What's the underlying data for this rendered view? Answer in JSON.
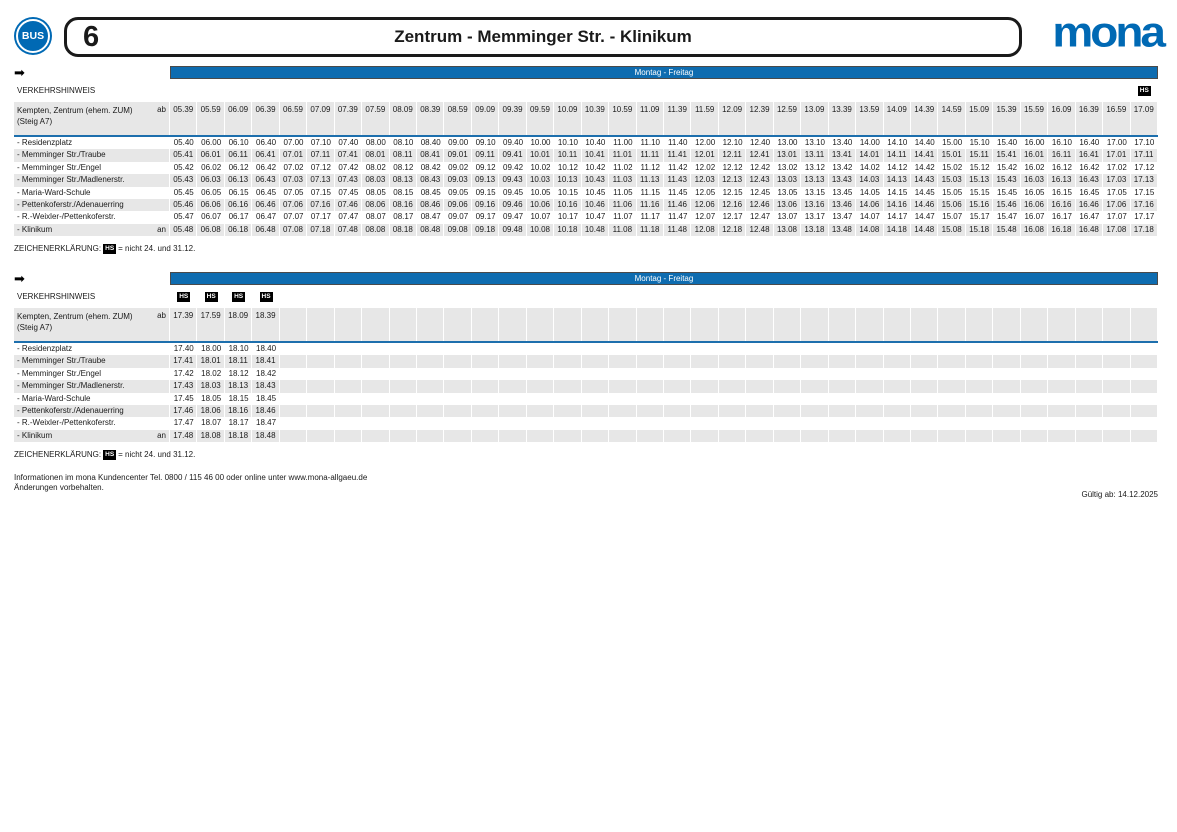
{
  "header": {
    "bus_label": "BUS",
    "line_number": "6",
    "title": "Zentrum - Memminger Str. - Klinikum",
    "logo_text": "mona"
  },
  "colors": {
    "brand_blue": "#0069b4",
    "bar_blue": "#0e6cb0",
    "row_gray": "#e7e7e7",
    "badge_black": "#000000"
  },
  "legend": {
    "prefix": "ZEICHENERKLÄRUNG:",
    "symbol": "HS",
    "suffix": "= nicht 24. und 31.12."
  },
  "footer": {
    "info_line1": "Informationen im mona Kundencenter Tel. 0800 / 115 46 00 oder online unter www.mona-allgaeu.de",
    "info_line2": "Änderungen vorbehalten.",
    "valid_from": "Gültig ab: 14.12.2025"
  },
  "tables": [
    {
      "day_label": "Montag - Freitag",
      "hinweis_label": "VERKEHRSHINWEIS",
      "hs_symbol": "HS",
      "num_columns": 36,
      "hs_columns": [
        35
      ],
      "origin": {
        "name": "Kempten, Zentrum (ehem. ZUM)",
        "name2": "(Steig A7)",
        "tag": "ab",
        "times": [
          "05.39",
          "05.59",
          "06.09",
          "06.39",
          "06.59",
          "07.09",
          "07.39",
          "07.59",
          "08.09",
          "08.39",
          "08.59",
          "09.09",
          "09.39",
          "09.59",
          "10.09",
          "10.39",
          "10.59",
          "11.09",
          "11.39",
          "11.59",
          "12.09",
          "12.39",
          "12.59",
          "13.09",
          "13.39",
          "13.59",
          "14.09",
          "14.39",
          "14.59",
          "15.09",
          "15.39",
          "15.59",
          "16.09",
          "16.39",
          "16.59",
          "17.09"
        ]
      },
      "rows": [
        {
          "name": "- Residenzplatz",
          "tag": "",
          "times": [
            "05.40",
            "06.00",
            "06.10",
            "06.40",
            "07.00",
            "07.10",
            "07.40",
            "08.00",
            "08.10",
            "08.40",
            "09.00",
            "09.10",
            "09.40",
            "10.00",
            "10.10",
            "10.40",
            "11.00",
            "11.10",
            "11.40",
            "12.00",
            "12.10",
            "12.40",
            "13.00",
            "13.10",
            "13.40",
            "14.00",
            "14.10",
            "14.40",
            "15.00",
            "15.10",
            "15.40",
            "16.00",
            "16.10",
            "16.40",
            "17.00",
            "17.10"
          ]
        },
        {
          "name": "- Memminger Str./Traube",
          "tag": "",
          "times": [
            "05.41",
            "06.01",
            "06.11",
            "06.41",
            "07.01",
            "07.11",
            "07.41",
            "08.01",
            "08.11",
            "08.41",
            "09.01",
            "09.11",
            "09.41",
            "10.01",
            "10.11",
            "10.41",
            "11.01",
            "11.11",
            "11.41",
            "12.01",
            "12.11",
            "12.41",
            "13.01",
            "13.11",
            "13.41",
            "14.01",
            "14.11",
            "14.41",
            "15.01",
            "15.11",
            "15.41",
            "16.01",
            "16.11",
            "16.41",
            "17.01",
            "17.11"
          ]
        },
        {
          "name": "- Memminger Str./Engel",
          "tag": "",
          "times": [
            "05.42",
            "06.02",
            "06.12",
            "06.42",
            "07.02",
            "07.12",
            "07.42",
            "08.02",
            "08.12",
            "08.42",
            "09.02",
            "09.12",
            "09.42",
            "10.02",
            "10.12",
            "10.42",
            "11.02",
            "11.12",
            "11.42",
            "12.02",
            "12.12",
            "12.42",
            "13.02",
            "13.12",
            "13.42",
            "14.02",
            "14.12",
            "14.42",
            "15.02",
            "15.12",
            "15.42",
            "16.02",
            "16.12",
            "16.42",
            "17.02",
            "17.12"
          ]
        },
        {
          "name": "- Memminger Str./Madlenerstr.",
          "tag": "",
          "times": [
            "05.43",
            "06.03",
            "06.13",
            "06.43",
            "07.03",
            "07.13",
            "07.43",
            "08.03",
            "08.13",
            "08.43",
            "09.03",
            "09.13",
            "09.43",
            "10.03",
            "10.13",
            "10.43",
            "11.03",
            "11.13",
            "11.43",
            "12.03",
            "12.13",
            "12.43",
            "13.03",
            "13.13",
            "13.43",
            "14.03",
            "14.13",
            "14.43",
            "15.03",
            "15.13",
            "15.43",
            "16.03",
            "16.13",
            "16.43",
            "17.03",
            "17.13"
          ]
        },
        {
          "name": "- Maria-Ward-Schule",
          "tag": "",
          "times": [
            "05.45",
            "06.05",
            "06.15",
            "06.45",
            "07.05",
            "07.15",
            "07.45",
            "08.05",
            "08.15",
            "08.45",
            "09.05",
            "09.15",
            "09.45",
            "10.05",
            "10.15",
            "10.45",
            "11.05",
            "11.15",
            "11.45",
            "12.05",
            "12.15",
            "12.45",
            "13.05",
            "13.15",
            "13.45",
            "14.05",
            "14.15",
            "14.45",
            "15.05",
            "15.15",
            "15.45",
            "16.05",
            "16.15",
            "16.45",
            "17.05",
            "17.15"
          ]
        },
        {
          "name": "- Pettenkoferstr./Adenauerring",
          "tag": "",
          "times": [
            "05.46",
            "06.06",
            "06.16",
            "06.46",
            "07.06",
            "07.16",
            "07.46",
            "08.06",
            "08.16",
            "08.46",
            "09.06",
            "09.16",
            "09.46",
            "10.06",
            "10.16",
            "10.46",
            "11.06",
            "11.16",
            "11.46",
            "12.06",
            "12.16",
            "12.46",
            "13.06",
            "13.16",
            "13.46",
            "14.06",
            "14.16",
            "14.46",
            "15.06",
            "15.16",
            "15.46",
            "16.06",
            "16.16",
            "16.46",
            "17.06",
            "17.16"
          ]
        },
        {
          "name": "- R.-Weixler-/Pettenkoferstr.",
          "tag": "",
          "times": [
            "05.47",
            "06.07",
            "06.17",
            "06.47",
            "07.07",
            "07.17",
            "07.47",
            "08.07",
            "08.17",
            "08.47",
            "09.07",
            "09.17",
            "09.47",
            "10.07",
            "10.17",
            "10.47",
            "11.07",
            "11.17",
            "11.47",
            "12.07",
            "12.17",
            "12.47",
            "13.07",
            "13.17",
            "13.47",
            "14.07",
            "14.17",
            "14.47",
            "15.07",
            "15.17",
            "15.47",
            "16.07",
            "16.17",
            "16.47",
            "17.07",
            "17.17"
          ]
        },
        {
          "name": "- Klinikum",
          "tag": "an",
          "times": [
            "05.48",
            "06.08",
            "06.18",
            "06.48",
            "07.08",
            "07.18",
            "07.48",
            "08.08",
            "08.18",
            "08.48",
            "09.08",
            "09.18",
            "09.48",
            "10.08",
            "10.18",
            "10.48",
            "11.08",
            "11.18",
            "11.48",
            "12.08",
            "12.18",
            "12.48",
            "13.08",
            "13.18",
            "13.48",
            "14.08",
            "14.18",
            "14.48",
            "15.08",
            "15.18",
            "15.48",
            "16.08",
            "16.18",
            "16.48",
            "17.08",
            "17.18"
          ]
        }
      ]
    },
    {
      "day_label": "Montag - Freitag",
      "hinweis_label": "VERKEHRSHINWEIS",
      "hs_symbol": "HS",
      "num_columns": 36,
      "hs_columns": [
        0,
        1,
        2,
        3
      ],
      "origin": {
        "name": "Kempten, Zentrum (ehem. ZUM)",
        "name2": "(Steig A7)",
        "tag": "ab",
        "times": [
          "17.39",
          "17.59",
          "18.09",
          "18.39"
        ]
      },
      "rows": [
        {
          "name": "- Residenzplatz",
          "tag": "",
          "times": [
            "17.40",
            "18.00",
            "18.10",
            "18.40"
          ]
        },
        {
          "name": "- Memminger Str./Traube",
          "tag": "",
          "times": [
            "17.41",
            "18.01",
            "18.11",
            "18.41"
          ]
        },
        {
          "name": "- Memminger Str./Engel",
          "tag": "",
          "times": [
            "17.42",
            "18.02",
            "18.12",
            "18.42"
          ]
        },
        {
          "name": "- Memminger Str./Madlenerstr.",
          "tag": "",
          "times": [
            "17.43",
            "18.03",
            "18.13",
            "18.43"
          ]
        },
        {
          "name": "- Maria-Ward-Schule",
          "tag": "",
          "times": [
            "17.45",
            "18.05",
            "18.15",
            "18.45"
          ]
        },
        {
          "name": "- Pettenkoferstr./Adenauerring",
          "tag": "",
          "times": [
            "17.46",
            "18.06",
            "18.16",
            "18.46"
          ]
        },
        {
          "name": "- R.-Weixler-/Pettenkoferstr.",
          "tag": "",
          "times": [
            "17.47",
            "18.07",
            "18.17",
            "18.47"
          ]
        },
        {
          "name": "- Klinikum",
          "tag": "an",
          "times": [
            "17.48",
            "18.08",
            "18.18",
            "18.48"
          ]
        }
      ]
    }
  ]
}
